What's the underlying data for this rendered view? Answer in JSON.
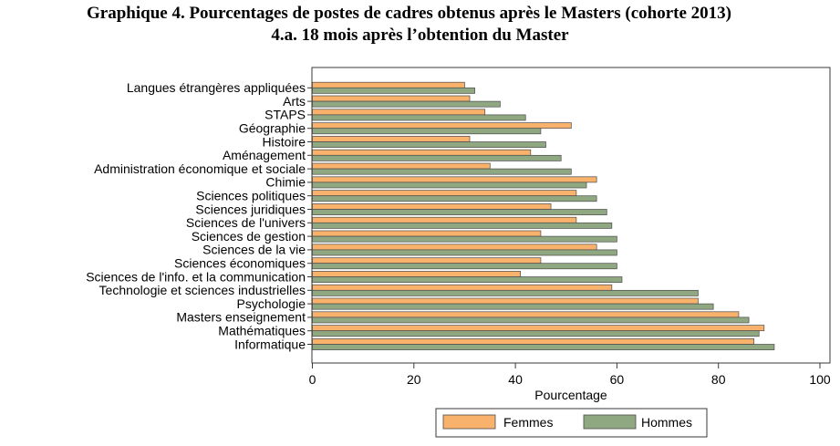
{
  "chart_data": {
    "type": "bar",
    "orientation": "horizontal",
    "title": "Graphique 4. Pourcentages de postes de cadres obtenus après le Masters (cohorte 2013)",
    "subtitle": "4.a. 18 mois après l’obtention du Master",
    "xlabel": "Pourcentage",
    "ylabel": "",
    "xlim": [
      0,
      100
    ],
    "xticks": [
      0,
      20,
      40,
      60,
      80,
      100
    ],
    "grid": false,
    "legend_position": "bottom",
    "categories": [
      "Langues étrangères appliquées",
      "Arts",
      "STAPS",
      "Géographie",
      "Histoire",
      "Aménagement",
      "Administration économique et sociale",
      "Chimie",
      "Sciences politiques",
      "Sciences juridiques",
      "Sciences de l'univers",
      "Sciences de gestion",
      "Sciences de la vie",
      "Sciences économiques",
      "Sciences de l'info. et la communication",
      "Technologie et sciences industrielles",
      "Psychologie",
      "Masters enseignement",
      "Mathématiques",
      "Informatique"
    ],
    "series": [
      {
        "name": "Femmes",
        "color": "#f9b26c",
        "values": [
          30,
          31,
          34,
          51,
          31,
          43,
          35,
          56,
          52,
          47,
          52,
          45,
          56,
          45,
          41,
          59,
          76,
          84,
          89,
          87
        ]
      },
      {
        "name": "Hommes",
        "color": "#8fa882",
        "values": [
          32,
          37,
          42,
          45,
          46,
          49,
          51,
          54,
          56,
          58,
          59,
          60,
          60,
          60,
          61,
          76,
          79,
          86,
          88,
          91
        ]
      }
    ]
  }
}
